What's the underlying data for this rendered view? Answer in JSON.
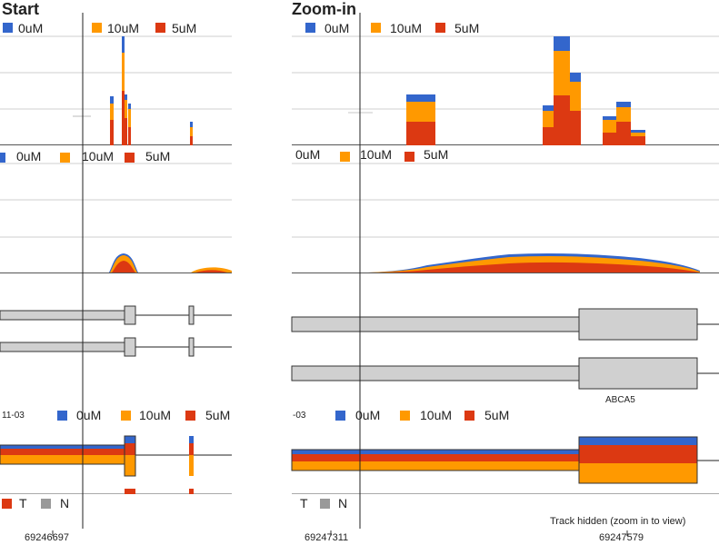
{
  "panels": {
    "start_title": "Start",
    "zoom_title": "Zoom-in"
  },
  "legend": {
    "labels": [
      "0uM",
      "10uM",
      "5uM"
    ],
    "colors": [
      "#3366cc",
      "#ff9900",
      "#dc3912"
    ]
  },
  "row_prefixes": {
    "start_track4": "11-03",
    "zoom_track4": "-03"
  },
  "bottom_legend": {
    "labels": [
      "T",
      "N"
    ],
    "colors": [
      "#dc3912",
      "#999999"
    ]
  },
  "gene_label": "ABCA5",
  "track_hidden": "Track hidden (zoom in to view)",
  "coordinates": {
    "start": "69246697",
    "zoom_left": "69247311",
    "zoom_right": "69247579"
  }
}
